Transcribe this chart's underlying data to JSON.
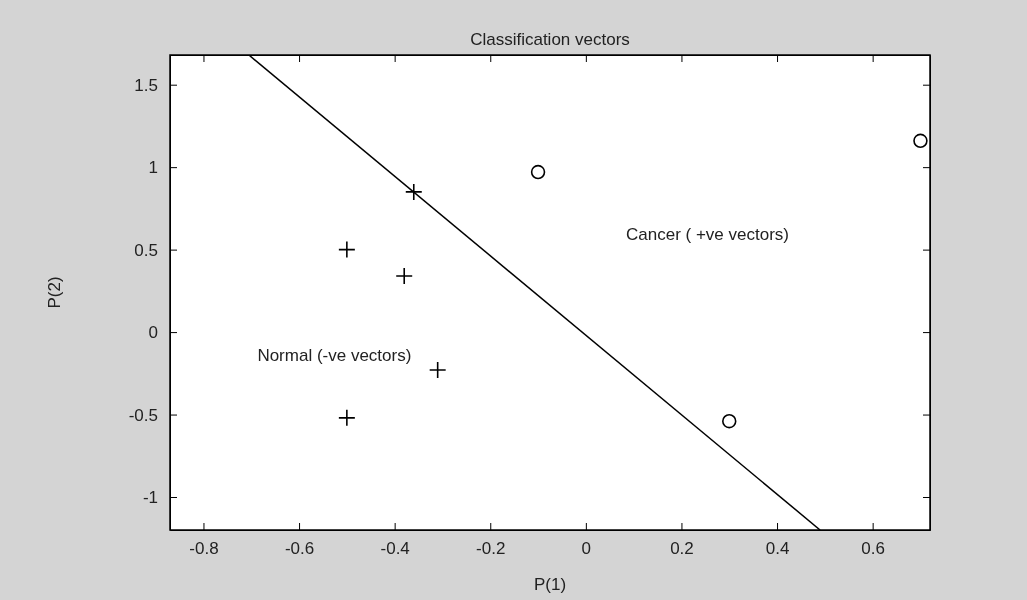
{
  "chart_data": {
    "type": "scatter",
    "title": "Classification vectors",
    "xlabel": "P(1)",
    "ylabel": "P(2)",
    "xlim": [
      -0.87,
      0.72
    ],
    "xticks": [
      -0.8,
      -0.6,
      -0.4,
      -0.2,
      0,
      0.2,
      0.4,
      0.6
    ],
    "ylim": [
      -1.2,
      1.68
    ],
    "yticks": [
      -1,
      -0.5,
      0,
      0.5,
      1,
      1.5
    ],
    "grid": false,
    "annotations": [
      "Cancer ( +ve vectors)",
      "Normal (-ve vectors)"
    ],
    "series": [
      {
        "marker": "cross",
        "color": "#000000",
        "x": [
          -0.5,
          -0.38,
          -0.36,
          -0.31,
          -0.5
        ],
        "values": [
          0.5,
          0.34,
          0.85,
          -0.23,
          -0.52
        ]
      },
      {
        "marker": "circle",
        "color": "#000000",
        "x": [
          -0.1,
          0.3,
          0.7
        ],
        "values": [
          0.97,
          -0.54,
          1.16
        ]
      },
      {
        "type": "line",
        "marker": "none",
        "line_style": "solid",
        "color": "#000000",
        "x": [
          -0.705,
          0.49
        ],
        "values": [
          1.68,
          -1.2
        ]
      }
    ]
  }
}
